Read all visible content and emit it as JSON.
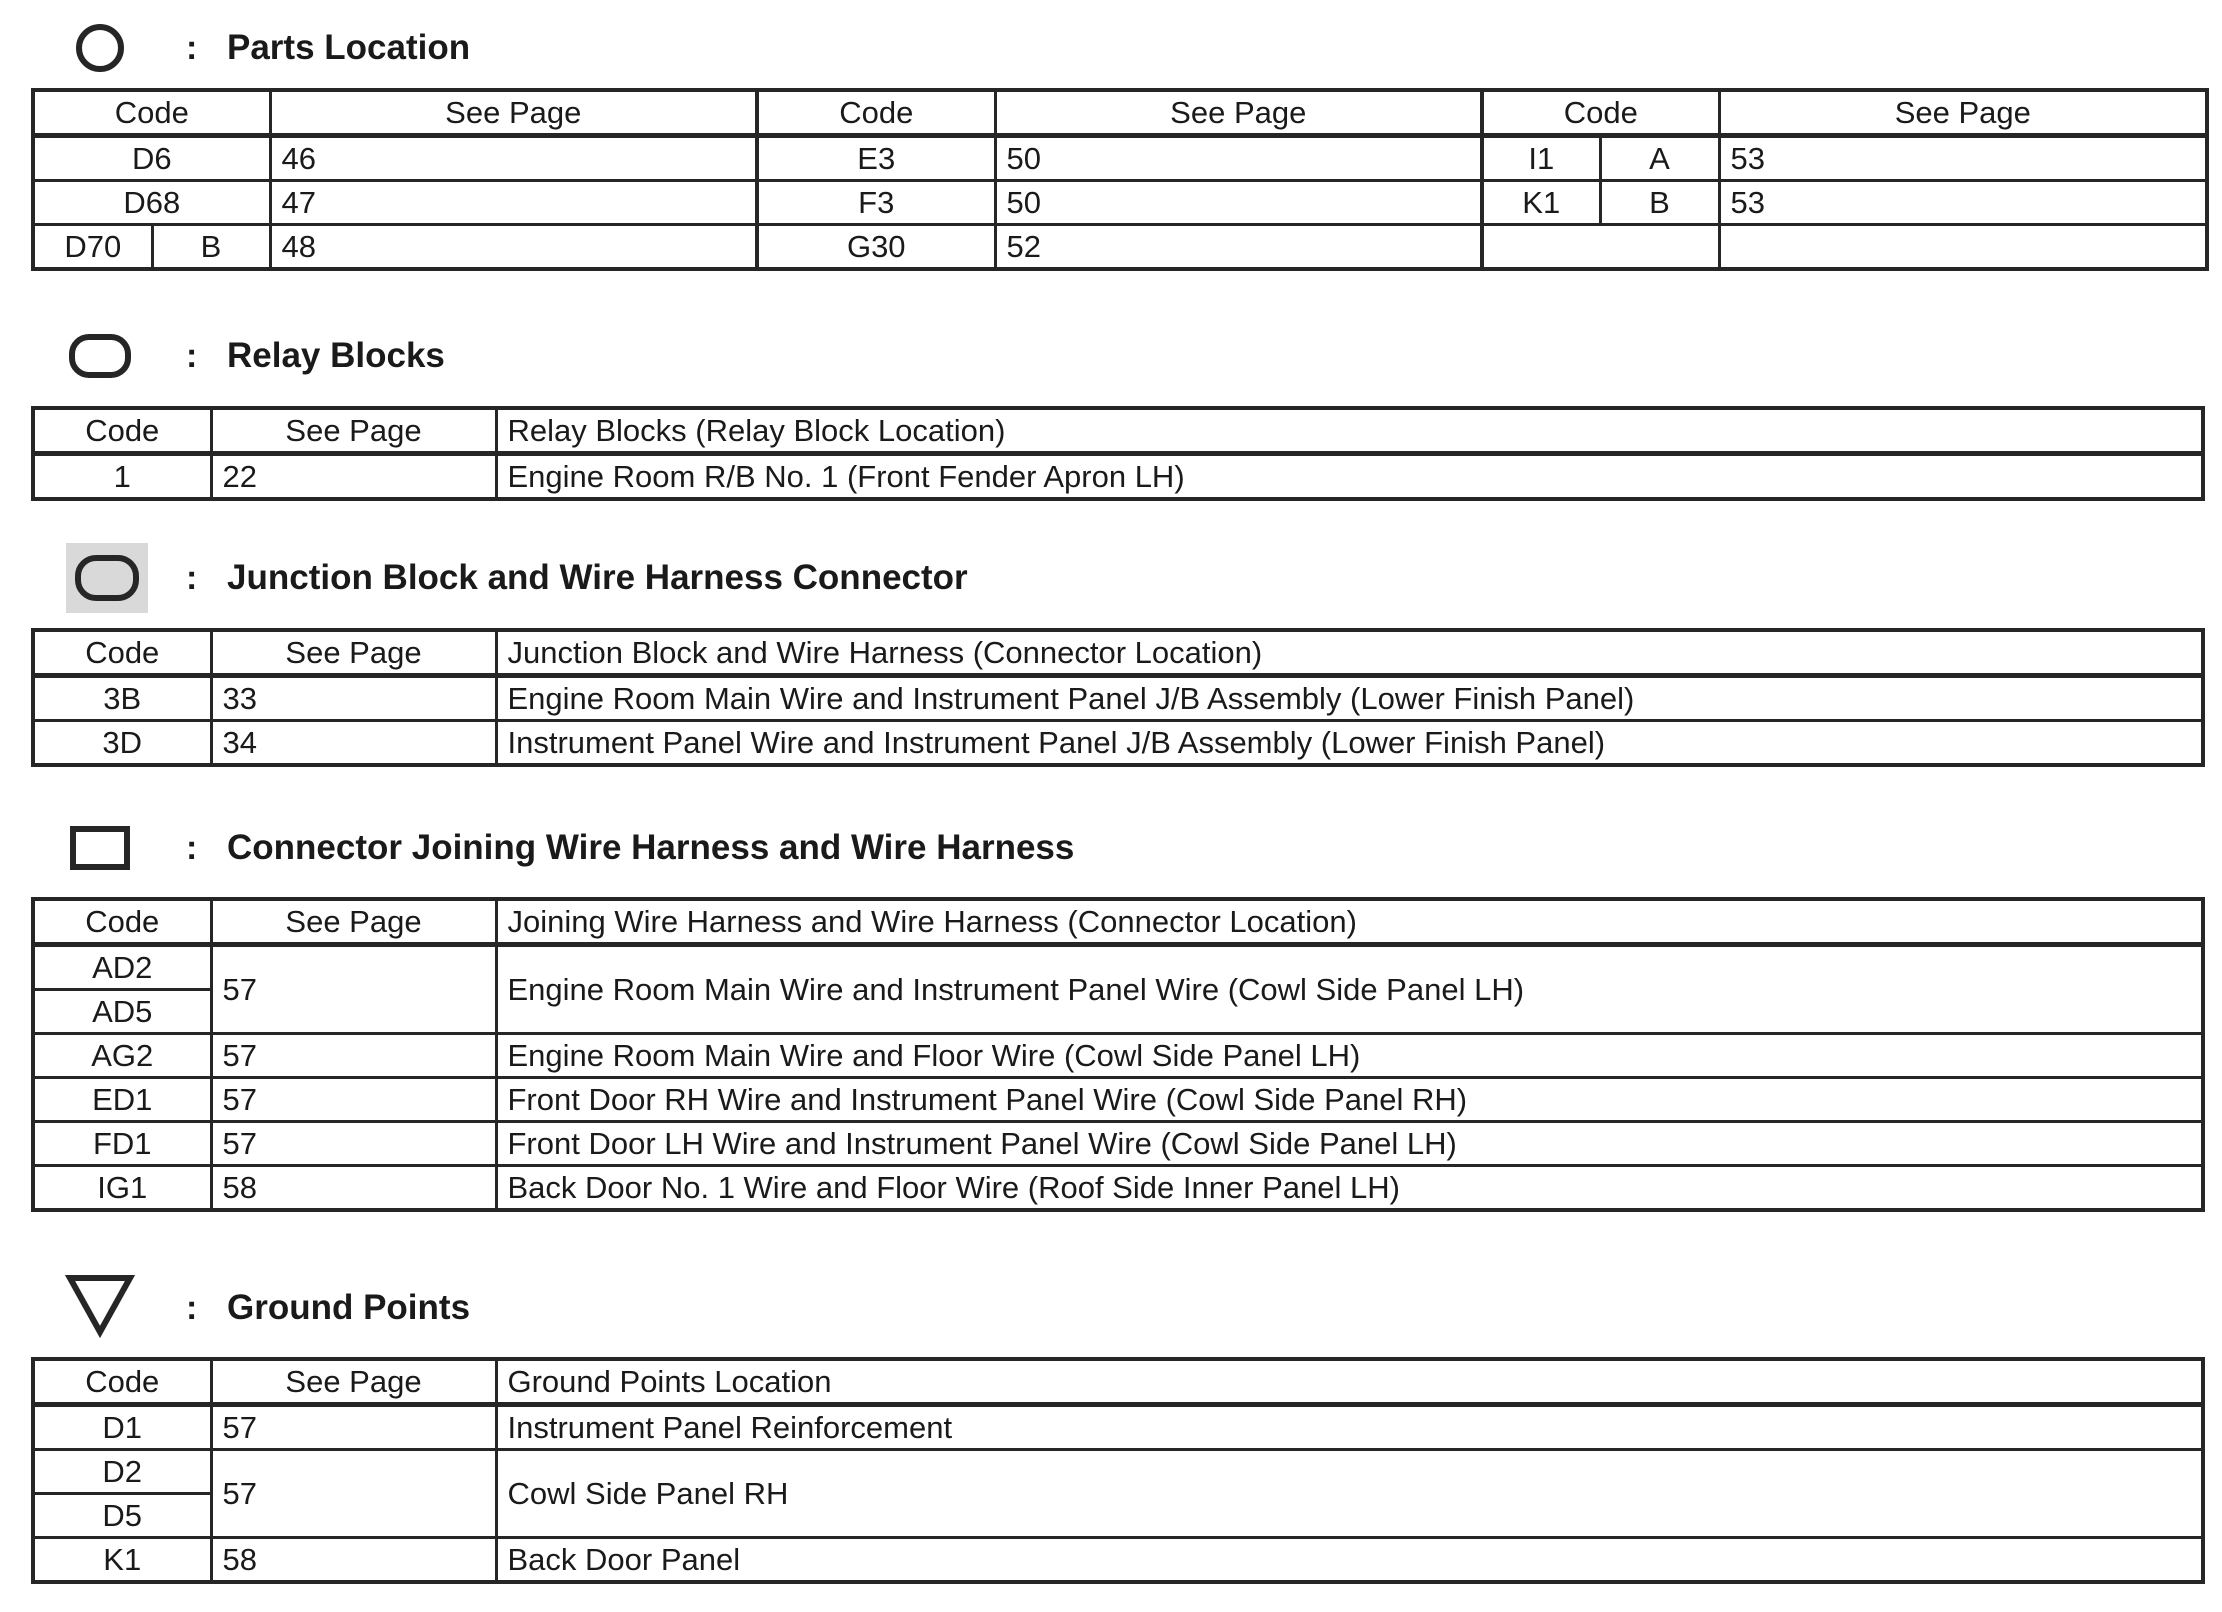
{
  "parts_location": {
    "title": "Parts Location",
    "colon": ":",
    "icon": "circle-icon",
    "headers": {
      "code": "Code",
      "see_page": "See Page"
    },
    "rows": [
      [
        {
          "code": "D6",
          "page": "46"
        },
        {
          "code": "E3",
          "page": "50"
        },
        {
          "code": "I1",
          "sub": "A",
          "page": "53"
        }
      ],
      [
        {
          "code": "D68",
          "page": "47"
        },
        {
          "code": "F3",
          "page": "50"
        },
        {
          "code": "K1",
          "sub": "B",
          "page": "53"
        }
      ],
      [
        {
          "code": "D70",
          "sub": "B",
          "page": "48"
        },
        {
          "code": "G30",
          "page": "52"
        },
        {}
      ]
    ]
  },
  "relay_blocks": {
    "title": "Relay Blocks",
    "colon": ":",
    "icon": "rounded-rectangle-icon",
    "headers": {
      "code": "Code",
      "see_page": "See Page",
      "desc": "Relay Blocks (Relay Block Location)"
    },
    "rows": [
      {
        "code": "1",
        "page": "22",
        "desc": "Engine Room R/B No. 1 (Front Fender Apron LH)"
      }
    ]
  },
  "junction_blocks": {
    "title": "Junction Block and Wire Harness Connector",
    "colon": ":",
    "icon": "shaded-rounded-rectangle-icon",
    "headers": {
      "code": "Code",
      "see_page": "See Page",
      "desc": "Junction Block and Wire Harness (Connector Location)"
    },
    "rows": [
      {
        "code": "3B",
        "page": "33",
        "desc": "Engine Room Main Wire and Instrument Panel J/B Assembly (Lower Finish Panel)"
      },
      {
        "code": "3D",
        "page": "34",
        "desc": "Instrument Panel Wire and Instrument Panel J/B Assembly (Lower Finish Panel)"
      }
    ]
  },
  "joining_connectors": {
    "title": "Connector Joining Wire Harness and Wire Harness",
    "colon": ":",
    "icon": "rectangle-icon",
    "headers": {
      "code": "Code",
      "see_page": "See Page",
      "desc": "Joining Wire Harness and Wire Harness (Connector Location)"
    },
    "rows": [
      {
        "codes": [
          "AD2",
          "AD5"
        ],
        "page": "57",
        "desc": "Engine Room Main Wire and Instrument Panel Wire (Cowl Side Panel LH)"
      },
      {
        "code": "AG2",
        "page": "57",
        "desc": "Engine Room Main Wire and Floor Wire (Cowl Side Panel LH)"
      },
      {
        "code": "ED1",
        "page": "57",
        "desc": "Front Door RH Wire and Instrument Panel Wire (Cowl Side Panel RH)"
      },
      {
        "code": "FD1",
        "page": "57",
        "desc": "Front Door LH Wire and Instrument Panel Wire (Cowl Side Panel LH)"
      },
      {
        "code": "IG1",
        "page": "58",
        "desc": "Back Door No. 1 Wire and Floor Wire (Roof Side Inner Panel LH)"
      }
    ]
  },
  "ground_points": {
    "title": "Ground Points",
    "colon": ":",
    "icon": "triangle-down-icon",
    "headers": {
      "code": "Code",
      "see_page": "See Page",
      "desc": "Ground Points Location"
    },
    "rows": [
      {
        "code": "D1",
        "page": "57",
        "desc": "Instrument Panel Reinforcement"
      },
      {
        "codes": [
          "D2",
          "D5"
        ],
        "page": "57",
        "desc": "Cowl Side Panel RH"
      },
      {
        "code": "K1",
        "page": "58",
        "desc": "Back Door Panel"
      }
    ]
  }
}
